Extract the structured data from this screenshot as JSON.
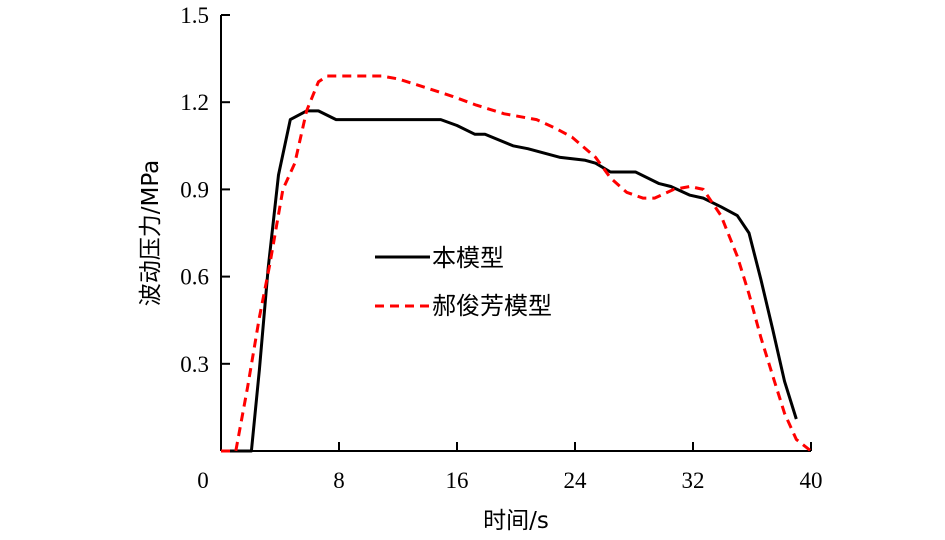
{
  "chart_data": {
    "type": "line",
    "title": "",
    "xlabel": "时间/s",
    "ylabel": "波动压力/MPa",
    "xlim": [
      0,
      40
    ],
    "ylim": [
      0,
      1.5
    ],
    "xticks": [
      0,
      8,
      16,
      24,
      32,
      40
    ],
    "xtick_labels": [
      "0",
      "8",
      "16",
      "24",
      "32",
      "40"
    ],
    "yticks": [
      0.3,
      0.6,
      0.9,
      1.2,
      1.5
    ],
    "ytick_labels": [
      "0.3",
      "0.6",
      "0.9",
      "1.2",
      "1.5"
    ],
    "grid": false,
    "legend_position": "center-left",
    "series": [
      {
        "name": "本模型",
        "color": "#000000",
        "style": "solid",
        "x": [
          0,
          2.06,
          2.6,
          3.2,
          3.9,
          4.7,
          5.8,
          6.6,
          7.8,
          14.9,
          16.0,
          17.2,
          17.9,
          19.8,
          20.8,
          23.0,
          24.7,
          25.4,
          26.4,
          28.1,
          29.7,
          30.5,
          31.8,
          32.7,
          33.9,
          35.0,
          35.8,
          36.6,
          37.4,
          38.2,
          39.0
        ],
        "y": [
          0,
          0,
          0.28,
          0.63,
          0.95,
          1.14,
          1.17,
          1.17,
          1.14,
          1.14,
          1.12,
          1.09,
          1.09,
          1.05,
          1.04,
          1.01,
          1.0,
          0.99,
          0.96,
          0.96,
          0.92,
          0.91,
          0.88,
          0.87,
          0.84,
          0.81,
          0.75,
          0.59,
          0.42,
          0.24,
          0.11
        ]
      },
      {
        "name": "郝俊芳模型",
        "color": "#ff0000",
        "style": "dashed",
        "x": [
          0,
          1.0,
          1.8,
          2.6,
          3.3,
          4.2,
          5.0,
          5.8,
          6.6,
          7.2,
          8.2,
          10.9,
          12.0,
          13.9,
          15.7,
          17.3,
          19.2,
          21.4,
          22.7,
          23.8,
          25.4,
          26.4,
          27.5,
          28.6,
          29.4,
          30.7,
          31.8,
          32.7,
          33.9,
          35.0,
          35.8,
          36.6,
          37.4,
          38.2,
          39.0,
          40.0
        ],
        "y": [
          0,
          0,
          0.22,
          0.46,
          0.64,
          0.9,
          0.99,
          1.17,
          1.27,
          1.29,
          1.29,
          1.29,
          1.28,
          1.25,
          1.22,
          1.19,
          1.16,
          1.14,
          1.11,
          1.08,
          1.01,
          0.94,
          0.89,
          0.87,
          0.87,
          0.9,
          0.91,
          0.9,
          0.81,
          0.67,
          0.54,
          0.39,
          0.26,
          0.13,
          0.04,
          0
        ]
      }
    ]
  }
}
